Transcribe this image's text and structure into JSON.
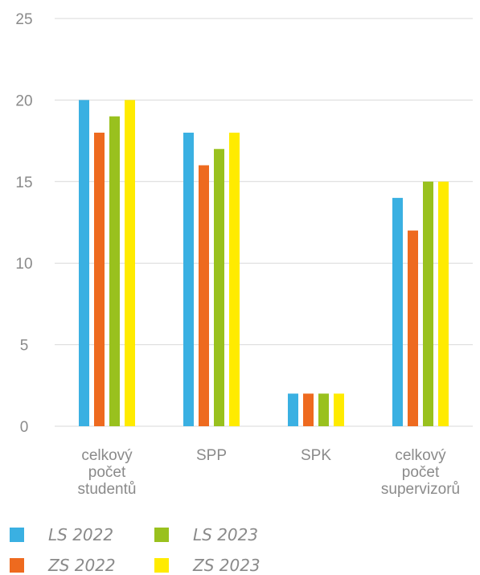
{
  "chart_data": {
    "type": "bar",
    "title": "",
    "xlabel": "",
    "ylabel": "",
    "ylim": [
      0,
      25
    ],
    "yticks": [
      0,
      5,
      10,
      15,
      20,
      25
    ],
    "grid": true,
    "legend_position": "bottom-left",
    "categories": [
      [
        "celkový",
        "počet",
        "studentů"
      ],
      [
        "SPP"
      ],
      [
        "SPK"
      ],
      [
        "celkový",
        "počet",
        "supervizorů"
      ]
    ],
    "series": [
      {
        "name": "LS 2022",
        "color": "#3AB0E2",
        "values": [
          20,
          18,
          2,
          14
        ]
      },
      {
        "name": "ZS 2022",
        "color": "#EE6A1F",
        "values": [
          18,
          16,
          2,
          12
        ]
      },
      {
        "name": "LS 2023",
        "color": "#99C11E",
        "values": [
          19,
          17,
          2,
          15
        ]
      },
      {
        "name": "ZS 2023",
        "color": "#FFEB00",
        "values": [
          20,
          18,
          2,
          15
        ]
      }
    ]
  }
}
